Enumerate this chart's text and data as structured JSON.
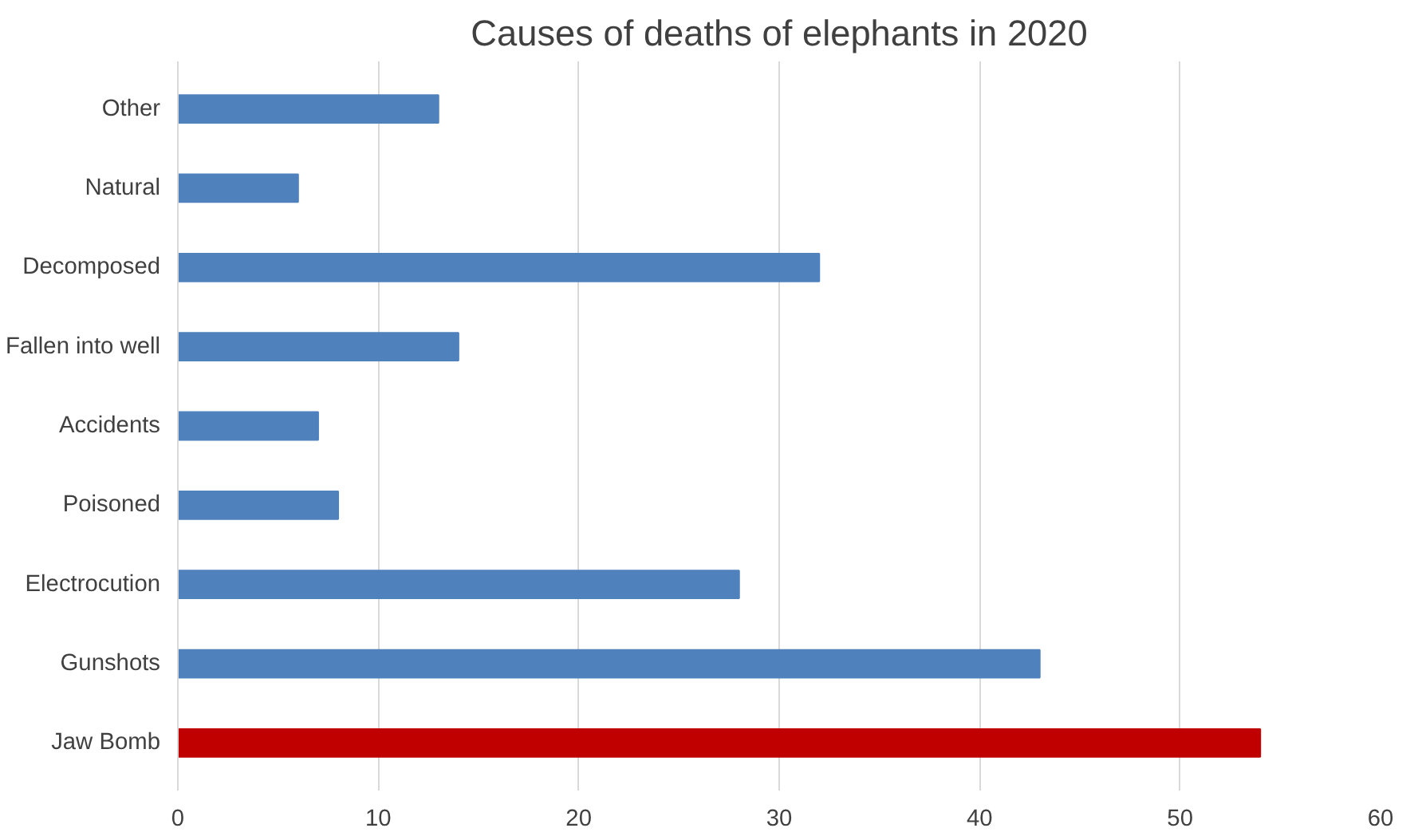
{
  "chart_data": {
    "type": "bar",
    "orientation": "horizontal",
    "title": "Causes of deaths of elephants in 2020",
    "categories": [
      "Other",
      "Natural",
      "Decomposed",
      "Fallen into well",
      "Accidents",
      "Poisoned",
      "Electrocution",
      "Gunshots",
      "Jaw Bomb"
    ],
    "values": [
      13,
      6,
      32,
      14,
      7,
      8,
      28,
      43,
      54
    ],
    "colors": [
      "#4f81bd",
      "#4f81bd",
      "#4f81bd",
      "#4f81bd",
      "#4f81bd",
      "#4f81bd",
      "#4f81bd",
      "#4f81bd",
      "#c00000"
    ],
    "xlim": [
      0,
      60
    ],
    "xticks": [
      0,
      10,
      20,
      30,
      40,
      50,
      60
    ],
    "grid": "x"
  }
}
